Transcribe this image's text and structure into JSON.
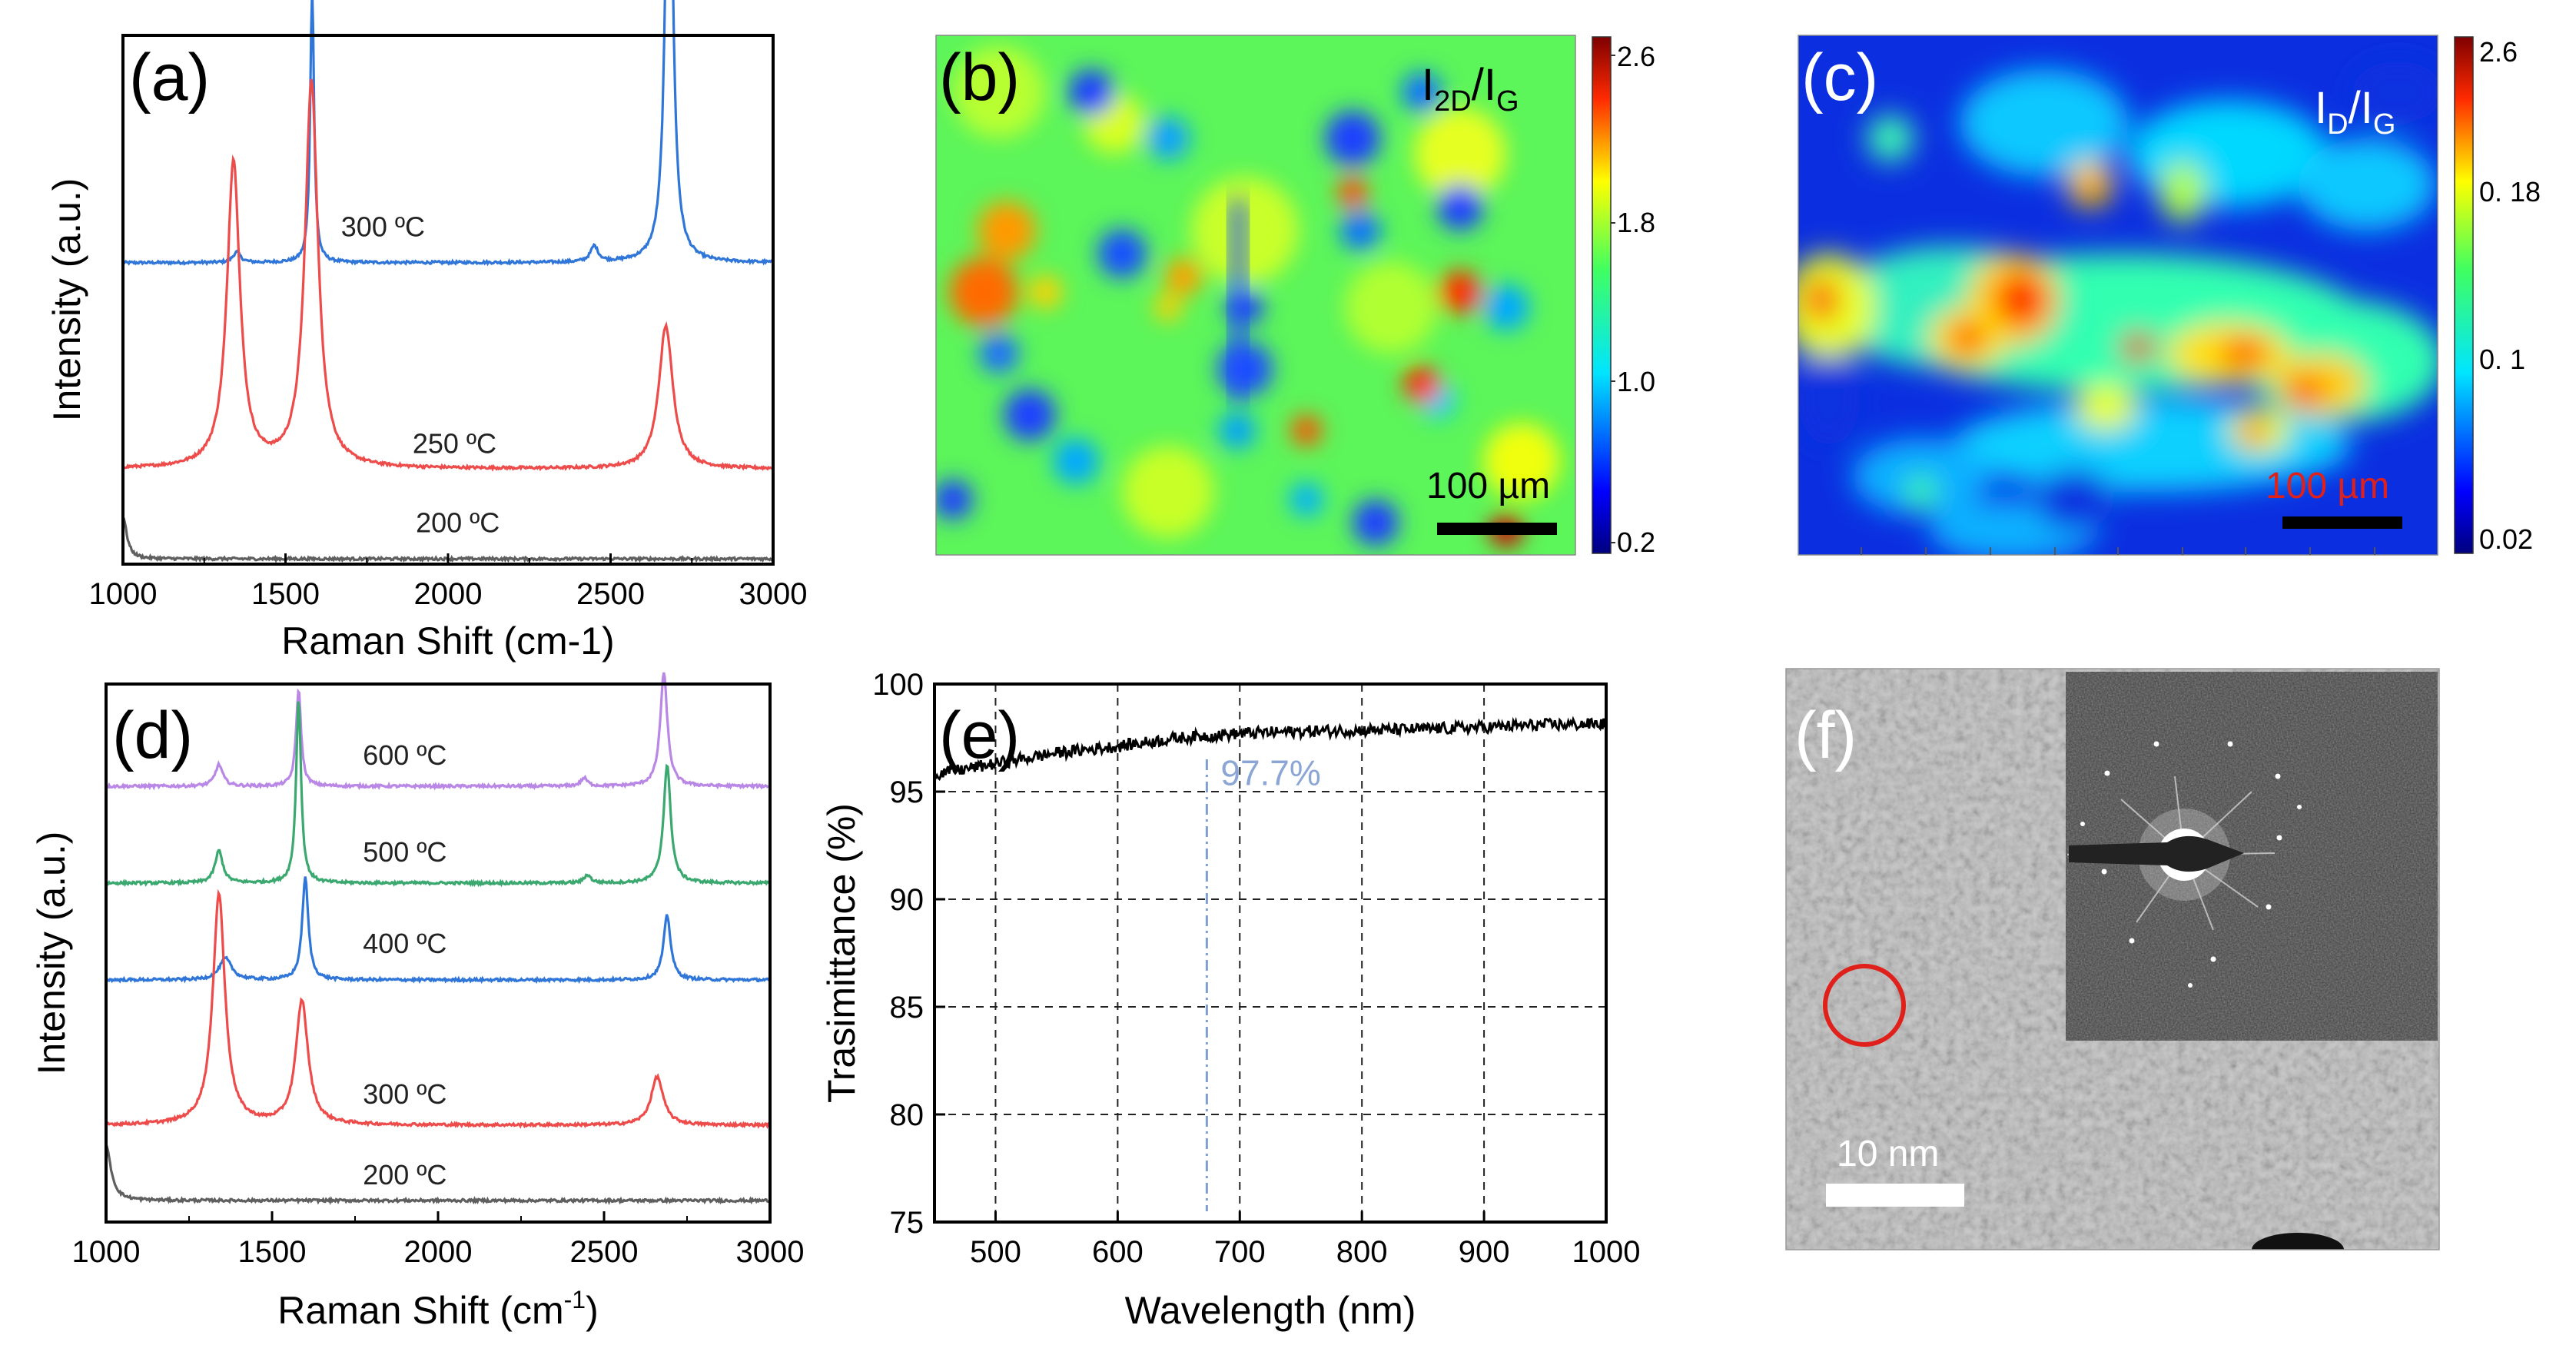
{
  "colors": {
    "line_blue": "#2f76d8",
    "line_red": "#ee4b4b",
    "line_gray": "#5f5f5f",
    "line_purple": "#b987e6",
    "line_green": "#3aa86f",
    "black": "#000000",
    "annotation": "#8ba6d4",
    "scalebar_text_red": "#e0201a",
    "circle_red": "#e0201a"
  },
  "chart_data": [
    {
      "id": "a",
      "type": "line",
      "panel_label": "(a)",
      "xlabel": "Raman Shift (cm-1)",
      "ylabel": "Intensity (a.u.)",
      "xlim": [
        1000,
        3000
      ],
      "ylim": [
        0,
        100
      ],
      "x_ticks": [
        1000,
        1500,
        2000,
        2500,
        3000
      ],
      "y_ticks": [],
      "grid": false,
      "series": [
        {
          "name": "300 °C",
          "label": "300 ºC",
          "color": "#2f76d8",
          "offset": 57,
          "peaks": [
            [
              1350,
              2,
              14
            ],
            [
              1582,
              52,
              7
            ],
            [
              2450,
              3,
              14
            ],
            [
              2680,
              98,
              13
            ]
          ],
          "label_at": [
            1800,
            62
          ]
        },
        {
          "name": "250 °C",
          "label": "250 ºC",
          "color": "#ee4b4b",
          "offset": 18,
          "peaks": [
            [
              1340,
              58,
              24
            ],
            [
              1580,
              73,
              24
            ],
            [
              2670,
              27,
              26
            ]
          ],
          "label_at": [
            2020,
            21
          ]
        },
        {
          "name": "200 °C",
          "label": "200 ºC",
          "color": "#5f5f5f",
          "offset": 1,
          "peaks": [
            [
              1000,
              8,
              14
            ]
          ],
          "label_at": [
            2030,
            6
          ]
        }
      ]
    },
    {
      "id": "b",
      "type": "heatmap",
      "panel_label": "(b)",
      "title": "I2D/IG",
      "title_main": "I",
      "title_sub1": "2D",
      "title_slash": "/I",
      "title_sub2": "G",
      "colorbar_ticks": [
        "2.6",
        "1.8",
        "1.0",
        "0.2"
      ],
      "scale_bar": "100 µm"
    },
    {
      "id": "c",
      "type": "heatmap",
      "panel_label": "(c)",
      "title": "ID/IG",
      "title_main": "I",
      "title_sub1": "D",
      "title_slash": "/I",
      "title_sub2": "G",
      "colorbar_ticks": [
        "2.6",
        "0. 18",
        "0. 1",
        "0.02"
      ],
      "scale_bar": "100 µm"
    },
    {
      "id": "d",
      "type": "line",
      "panel_label": "(d)",
      "xlabel": "Raman Shift (cm",
      "xlabel_sup": "-1",
      "xlabel_end": ")",
      "ylabel": "Intensity (a.u.)",
      "xlim": [
        1000,
        3000
      ],
      "ylim": [
        0,
        100
      ],
      "x_ticks": [
        1000,
        1500,
        2000,
        2500,
        3000
      ],
      "y_ticks": [],
      "grid": false,
      "series": [
        {
          "name": "600 °C",
          "label": "600 ºC",
          "color": "#b987e6",
          "offset": 81,
          "peaks": [
            [
              1340,
              4,
              14
            ],
            [
              1580,
              18,
              9
            ],
            [
              2440,
              1.5,
              12
            ],
            [
              2680,
              21,
              13
            ]
          ],
          "label_at": [
            1900,
            85
          ]
        },
        {
          "name": "500 °C",
          "label": "500 ºC",
          "color": "#3aa86f",
          "offset": 63,
          "peaks": [
            [
              1340,
              6,
              14
            ],
            [
              1580,
              34,
              9
            ],
            [
              2450,
              1.5,
              12
            ],
            [
              2690,
              22,
              13
            ]
          ],
          "label_at": [
            1900,
            67
          ]
        },
        {
          "name": "400 °C",
          "label": "400 ºC",
          "color": "#2f76d8",
          "offset": 45,
          "peaks": [
            [
              1360,
              4,
              22
            ],
            [
              1600,
              19,
              11
            ],
            [
              2690,
              12,
              13
            ]
          ],
          "label_at": [
            1900,
            50
          ]
        },
        {
          "name": "300 °C",
          "label": "300 ºC",
          "color": "#ee4b4b",
          "offset": 18,
          "peaks": [
            [
              1340,
              43,
              22
            ],
            [
              1590,
              23,
              22
            ],
            [
              2660,
              9,
              22
            ]
          ],
          "label_at": [
            1900,
            22
          ]
        },
        {
          "name": "200 °C",
          "label": "200 ºC",
          "color": "#5f5f5f",
          "offset": 4,
          "peaks": [
            [
              1000,
              10,
              18
            ]
          ],
          "label_at": [
            1900,
            7
          ]
        }
      ]
    },
    {
      "id": "e",
      "type": "line",
      "panel_label": "(e)",
      "xlabel": "Wavelength (nm)",
      "ylabel": "Trasimittance (%)",
      "xlim": [
        450,
        1000
      ],
      "ylim": [
        75,
        100
      ],
      "x_ticks": [
        500,
        600,
        700,
        800,
        900,
        1000
      ],
      "y_ticks": [
        75,
        80,
        85,
        90,
        95,
        100
      ],
      "grid": true,
      "series": [
        {
          "name": "transmittance",
          "color": "#000000",
          "x": [
            450,
            500,
            550,
            600,
            650,
            700,
            750,
            800,
            850,
            900,
            950,
            1000
          ],
          "y": [
            95.8,
            96.3,
            96.8,
            97.1,
            97.5,
            97.7,
            97.8,
            97.85,
            97.9,
            98.0,
            98.1,
            98.15
          ]
        }
      ],
      "annotation": {
        "text": "97.7%",
        "x": 673,
        "y_from": 75.5,
        "y_to": 96.5
      }
    },
    {
      "id": "f",
      "type": "image",
      "panel_label": "(f)",
      "scale_bar": "10 nm"
    }
  ]
}
